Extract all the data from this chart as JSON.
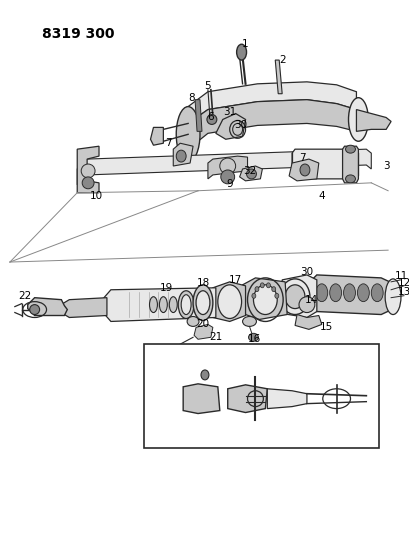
{
  "title": "8319 300",
  "bg_color": "#ffffff",
  "fig_width": 4.1,
  "fig_height": 5.33,
  "dpi": 100,
  "title_fontsize": 10,
  "line_color": "#2a2a2a",
  "label_fontsize": 7.5,
  "gray_fill": "#c8c8c8",
  "dark_fill": "#888888",
  "light_fill": "#e8e8e8"
}
